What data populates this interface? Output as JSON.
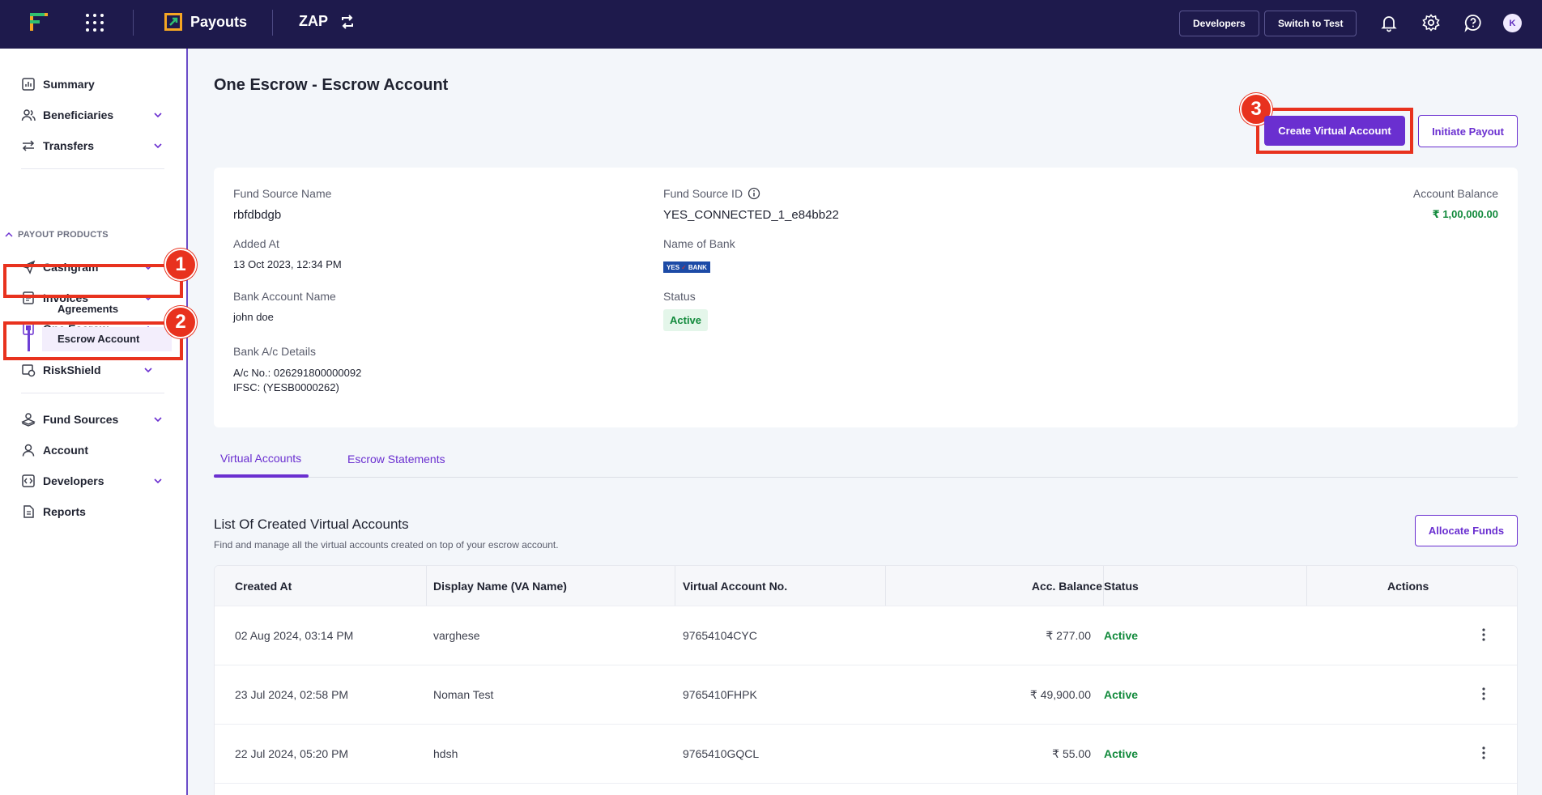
{
  "topbar": {
    "product_name": "Payouts",
    "zap_label": "ZAP",
    "developers_label": "Developers",
    "switch_label": "Switch to Test",
    "avatar_initial": "K"
  },
  "sidebar": {
    "items_top": [
      "Summary",
      "Beneficiaries",
      "Transfers"
    ],
    "section_title": "PAYOUT PRODUCTS",
    "products": [
      "Cashgram",
      "Invoices",
      "One Escrow"
    ],
    "escrow_sub": [
      "Agreements",
      "Escrow Account"
    ],
    "riskshield": "RiskShield",
    "items_bottom": [
      "Fund Sources",
      "Account",
      "Developers",
      "Reports"
    ]
  },
  "callouts": [
    "1",
    "2",
    "3"
  ],
  "page": {
    "title": "One Escrow - Escrow Account",
    "create_va_label": "Create Virtual Account",
    "initiate_payout_label": "Initiate Payout"
  },
  "details": {
    "fund_source_name_label": "Fund Source Name",
    "fund_source_name": "rbfdbdgb",
    "added_at_label": "Added At",
    "added_at": "13 Oct 2023, 12:34 PM",
    "bank_account_name_label": "Bank Account Name",
    "bank_account_name": "john doe",
    "bank_details_label": "Bank A/c Details",
    "account_no": "A/c No.: 026291800000092",
    "ifsc": "IFSC: (YESB0000262)",
    "fund_source_id_label": "Fund Source ID",
    "fund_source_id": "YES_CONNECTED_1_e84bb22",
    "bank_name_label": "Name of Bank",
    "bank_logo_text_left": "YES",
    "bank_logo_text_right": "BANK",
    "status_label": "Status",
    "status": "Active",
    "balance_label": "Account Balance",
    "balance": "₹ 1,00,000.00"
  },
  "tabs": [
    "Virtual Accounts",
    "Escrow Statements"
  ],
  "list": {
    "title": "List Of Created Virtual Accounts",
    "subtitle": "Find and manage all the virtual accounts created on top of your escrow account.",
    "allocate_label": "Allocate Funds",
    "columns": [
      "Created At",
      "Display Name (VA Name)",
      "Virtual Account No.",
      "Acc. Balance",
      "Status",
      "Actions"
    ],
    "rows": [
      [
        "02 Aug 2024, 03:14 PM",
        "varghese",
        "97654104CYC",
        "₹ 277.00",
        "Active"
      ],
      [
        "23 Jul 2024, 02:58 PM",
        "Noman Test",
        "9765410FHPK",
        "₹ 49,900.00",
        "Active"
      ],
      [
        "22 Jul 2024, 05:20 PM",
        "hdsh",
        "9765410GQCL",
        "₹ 55.00",
        "Active"
      ]
    ]
  },
  "colors": {
    "topbar_bg": "#1e1a4c",
    "accent": "#6a2fd0",
    "callout": "#e8321e",
    "active_green": "#128a3c"
  }
}
